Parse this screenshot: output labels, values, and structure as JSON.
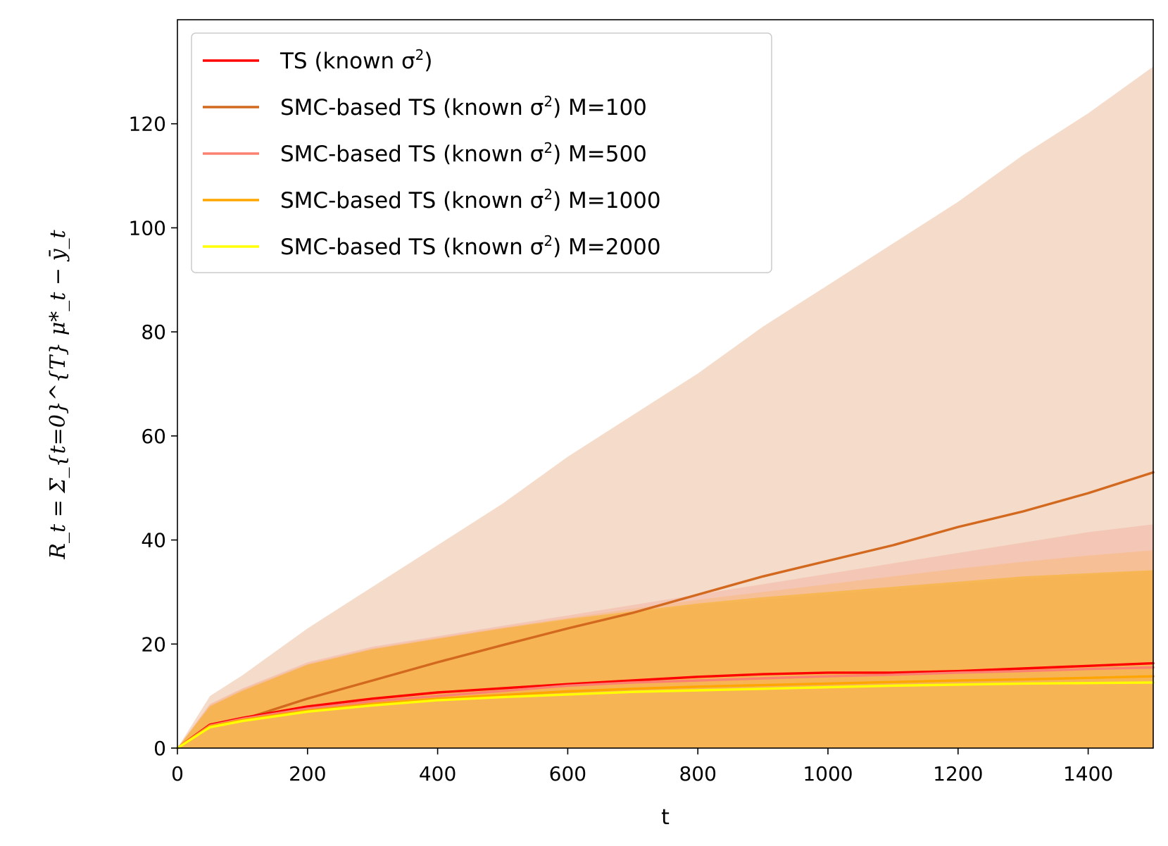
{
  "chart_data": {
    "type": "line",
    "title": "",
    "xlabel": "t",
    "ylabel": "R_t = Σ_{t=0}^{T} μ*_t − ȳ_t",
    "xlim": [
      0,
      1500
    ],
    "ylim": [
      0,
      140
    ],
    "xticks": [
      0,
      200,
      400,
      600,
      800,
      1000,
      1200,
      1400
    ],
    "yticks": [
      0,
      20,
      40,
      60,
      80,
      100,
      120
    ],
    "legend_position": "top-left",
    "x": [
      0,
      50,
      100,
      200,
      300,
      400,
      500,
      600,
      700,
      800,
      900,
      1000,
      1100,
      1200,
      1300,
      1400,
      1500
    ],
    "series": [
      {
        "name": "TS (known σ²)",
        "name_prefix": "TS (known σ",
        "name_suffix": ")",
        "name_tail": "",
        "color": "#ff0000",
        "values": [
          0,
          4.5,
          5.8,
          8.0,
          9.5,
          10.7,
          11.5,
          12.3,
          13.0,
          13.7,
          14.2,
          14.5,
          14.5,
          14.8,
          15.3,
          15.8,
          16.3
        ],
        "band_upper": [
          0,
          8,
          11,
          16,
          19,
          21,
          23,
          24.5,
          26,
          27.5,
          28.5,
          29.5,
          30.5,
          31.5,
          32.5,
          33.2,
          34
        ],
        "band_lower": [
          0,
          0,
          0,
          0,
          0,
          0,
          0,
          0,
          0,
          0,
          0,
          0,
          0,
          0,
          0,
          0,
          0
        ],
        "band_color": "#ff6666",
        "band_opacity": 0.2
      },
      {
        "name": "SMC-based TS (known σ²) M=100",
        "name_prefix": "SMC-based TS (known σ",
        "name_suffix": ")",
        "name_tail": " M=100",
        "color": "#d2691e",
        "values": [
          0,
          4.0,
          5.5,
          9.5,
          13.0,
          16.5,
          19.8,
          23.0,
          26.0,
          29.5,
          33.0,
          36.0,
          39.0,
          42.5,
          45.5,
          49.0,
          53.0
        ],
        "band_upper": [
          0,
          10,
          14,
          23,
          31,
          39,
          47,
          56,
          64,
          72,
          81,
          89,
          97,
          105,
          114,
          122,
          131
        ],
        "band_lower": [
          0,
          0,
          0,
          0,
          0,
          0,
          0,
          0,
          0,
          0,
          0,
          0,
          0,
          0,
          0,
          0,
          0
        ],
        "band_color": "#e6a67a",
        "band_opacity": 0.4
      },
      {
        "name": "SMC-based TS (known σ²) M=500",
        "name_prefix": "SMC-based TS (known σ",
        "name_suffix": ")",
        "name_tail": " M=500",
        "color": "#fa8072",
        "values": [
          0,
          4.3,
          5.6,
          7.6,
          9.0,
          10.0,
          11.0,
          12.0,
          12.6,
          13.0,
          13.4,
          13.8,
          14.1,
          14.5,
          14.8,
          15.2,
          15.5
        ],
        "band_upper": [
          0,
          8.5,
          11.5,
          16.5,
          19.5,
          21.5,
          23.5,
          25.5,
          27.5,
          29.5,
          31.5,
          33.5,
          35.5,
          37.5,
          39.5,
          41.5,
          43.0
        ],
        "band_lower": [
          0,
          0,
          0,
          0,
          0,
          0,
          0,
          0,
          0,
          0,
          0,
          0,
          0,
          0,
          0,
          0,
          0
        ],
        "band_color": "#f4a090",
        "band_opacity": 0.35
      },
      {
        "name": "SMC-based TS (known σ²) M=1000",
        "name_prefix": "SMC-based TS (known σ",
        "name_suffix": ")",
        "name_tail": " M=1000",
        "color": "#ffa500",
        "values": [
          0,
          4.2,
          5.4,
          7.2,
          8.5,
          9.5,
          10.2,
          10.9,
          11.4,
          11.8,
          12.1,
          12.4,
          12.7,
          13.0,
          13.2,
          13.5,
          13.8
        ],
        "band_upper": [
          0,
          8.3,
          11.3,
          16.2,
          19.2,
          21.2,
          23.2,
          25.0,
          26.8,
          28.5,
          30.0,
          31.5,
          33.0,
          34.5,
          35.8,
          37.0,
          38.0
        ],
        "band_lower": [
          0,
          0,
          0,
          0,
          0,
          0,
          0,
          0,
          0,
          0,
          0,
          0,
          0,
          0,
          0,
          0,
          0
        ],
        "band_color": "#f9b878",
        "band_opacity": 0.5
      },
      {
        "name": "SMC-based TS (known σ²) M=2000",
        "name_prefix": "SMC-based TS (known σ",
        "name_suffix": ")",
        "name_tail": " M=2000",
        "color": "#ffff00",
        "values": [
          0,
          4.0,
          5.2,
          7.0,
          8.2,
          9.2,
          9.8,
          10.3,
          10.8,
          11.1,
          11.4,
          11.7,
          12.0,
          12.2,
          12.4,
          12.5,
          12.6
        ],
        "band_upper": [
          0,
          8.0,
          11.0,
          16.0,
          19.0,
          21.0,
          23.0,
          24.8,
          26.3,
          27.8,
          29.0,
          30.0,
          31.0,
          32.0,
          33.0,
          33.6,
          34.2
        ],
        "band_lower": [
          0,
          0,
          0,
          0,
          0,
          0,
          0,
          0,
          0,
          0,
          0,
          0,
          0,
          0,
          0,
          0,
          0
        ],
        "band_color": "#f7b54a",
        "band_opacity": 0.85
      }
    ]
  }
}
